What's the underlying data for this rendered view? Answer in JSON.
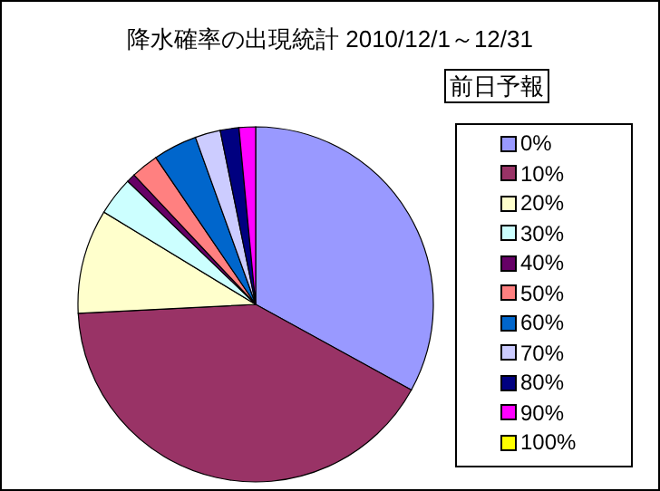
{
  "chart_data": {
    "type": "pie",
    "title": "降水確率の出現統計 2010/12/1～12/31",
    "legend_title": "前日予報",
    "legend": "right",
    "categories": [
      "0%",
      "10%",
      "20%",
      "30%",
      "40%",
      "50%",
      "60%",
      "70%",
      "80%",
      "90%",
      "100%"
    ],
    "values": [
      33,
      41.2,
      9.5,
      3.5,
      0.8,
      2.5,
      4,
      2.3,
      1.7,
      1.5,
      0
    ],
    "colors": [
      "#9999ff",
      "#993366",
      "#ffffcc",
      "#ccffff",
      "#660066",
      "#ff8080",
      "#0066cc",
      "#ccccff",
      "#000080",
      "#ff00ff",
      "#ffff00"
    ]
  }
}
